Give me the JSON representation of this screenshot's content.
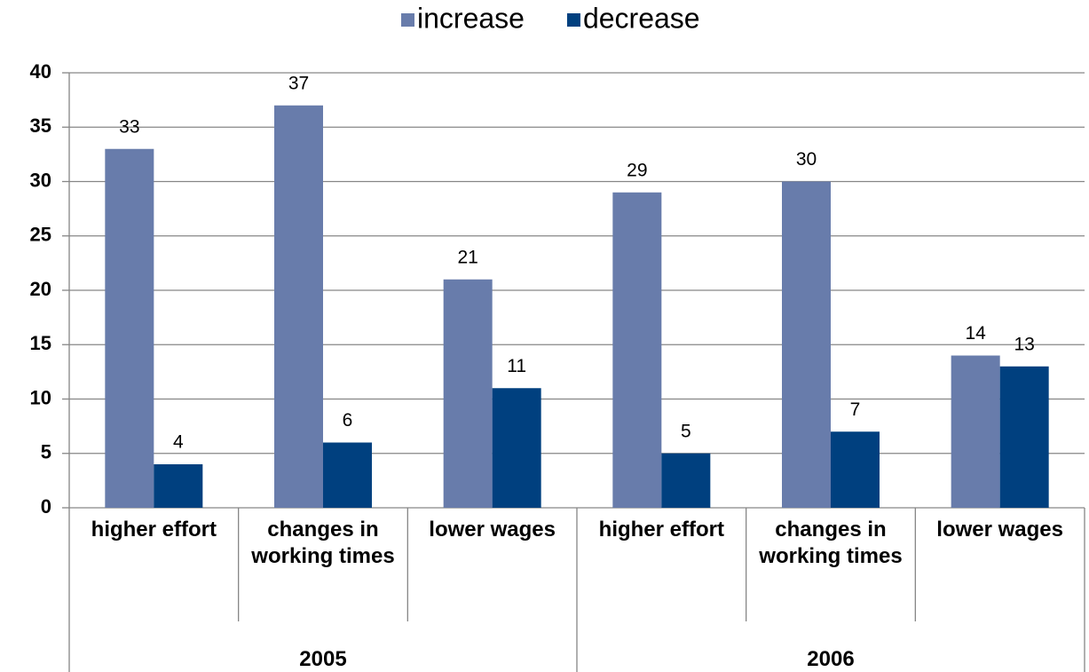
{
  "chart_data": {
    "type": "bar",
    "categories": [
      "higher effort",
      "changes in working times",
      "lower wages",
      "higher effort",
      "changes in working times",
      "lower wages"
    ],
    "groups": [
      "2005",
      "2006"
    ],
    "series": [
      {
        "name": "increase",
        "color": "#687cab",
        "values": [
          33,
          37,
          21,
          29,
          30,
          14
        ]
      },
      {
        "name": "decrease",
        "color": "#00407f",
        "values": [
          4,
          6,
          11,
          5,
          7,
          13
        ]
      }
    ],
    "ylim": [
      0,
      40
    ],
    "yticks": [
      0,
      5,
      10,
      15,
      20,
      25,
      30,
      35,
      40
    ],
    "grid": true,
    "legend": "top"
  }
}
